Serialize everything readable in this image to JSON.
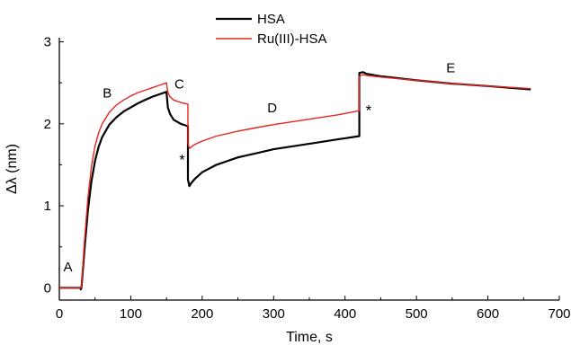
{
  "chart_data": {
    "type": "line",
    "title": "",
    "xlabel": "Time, s",
    "ylabel": "Δλ (nm)",
    "xlim": [
      0,
      700
    ],
    "ylim": [
      -0.15,
      3.05
    ],
    "x_ticks": [
      0,
      100,
      200,
      300,
      400,
      500,
      600,
      700
    ],
    "y_ticks": [
      0,
      1,
      2,
      3
    ],
    "grid": false,
    "legend_position": "top-center",
    "series": [
      {
        "name": "HSA",
        "color": "#000000",
        "points": [
          [
            0,
            0.0
          ],
          [
            30,
            0.0
          ],
          [
            30,
            -0.02
          ],
          [
            31,
            0.0
          ],
          [
            35,
            0.45
          ],
          [
            40,
            0.95
          ],
          [
            45,
            1.3
          ],
          [
            50,
            1.55
          ],
          [
            55,
            1.72
          ],
          [
            60,
            1.84
          ],
          [
            70,
            1.99
          ],
          [
            80,
            2.08
          ],
          [
            90,
            2.15
          ],
          [
            100,
            2.2
          ],
          [
            110,
            2.25
          ],
          [
            120,
            2.29
          ],
          [
            130,
            2.33
          ],
          [
            140,
            2.36
          ],
          [
            150,
            2.39
          ],
          [
            152,
            2.2
          ],
          [
            155,
            2.12
          ],
          [
            160,
            2.05
          ],
          [
            170,
            2.0
          ],
          [
            180,
            1.97
          ],
          [
            180,
            1.32
          ],
          [
            182,
            1.24
          ],
          [
            185,
            1.28
          ],
          [
            190,
            1.33
          ],
          [
            200,
            1.41
          ],
          [
            220,
            1.5
          ],
          [
            250,
            1.59
          ],
          [
            280,
            1.65
          ],
          [
            300,
            1.69
          ],
          [
            330,
            1.73
          ],
          [
            360,
            1.77
          ],
          [
            390,
            1.81
          ],
          [
            420,
            1.85
          ],
          [
            420,
            2.62
          ],
          [
            425,
            2.63
          ],
          [
            430,
            2.61
          ],
          [
            450,
            2.58
          ],
          [
            500,
            2.53
          ],
          [
            550,
            2.49
          ],
          [
            600,
            2.46
          ],
          [
            660,
            2.42
          ]
        ]
      },
      {
        "name": "Ru(III)-HSA",
        "color": "#e8251f",
        "points": [
          [
            0,
            0.0
          ],
          [
            30,
            0.0
          ],
          [
            31,
            0.0
          ],
          [
            35,
            0.55
          ],
          [
            40,
            1.1
          ],
          [
            45,
            1.48
          ],
          [
            50,
            1.73
          ],
          [
            55,
            1.89
          ],
          [
            60,
            2.0
          ],
          [
            70,
            2.14
          ],
          [
            80,
            2.23
          ],
          [
            90,
            2.29
          ],
          [
            100,
            2.34
          ],
          [
            110,
            2.38
          ],
          [
            120,
            2.41
          ],
          [
            130,
            2.44
          ],
          [
            140,
            2.47
          ],
          [
            150,
            2.5
          ],
          [
            152,
            2.38
          ],
          [
            155,
            2.33
          ],
          [
            160,
            2.29
          ],
          [
            170,
            2.26
          ],
          [
            180,
            2.24
          ],
          [
            180,
            1.76
          ],
          [
            182,
            1.7
          ],
          [
            185,
            1.72
          ],
          [
            190,
            1.75
          ],
          [
            200,
            1.79
          ],
          [
            220,
            1.85
          ],
          [
            250,
            1.91
          ],
          [
            280,
            1.96
          ],
          [
            300,
            1.99
          ],
          [
            330,
            2.03
          ],
          [
            360,
            2.07
          ],
          [
            390,
            2.11
          ],
          [
            420,
            2.16
          ],
          [
            420,
            2.58
          ],
          [
            425,
            2.6
          ],
          [
            430,
            2.59
          ],
          [
            450,
            2.57
          ],
          [
            500,
            2.53
          ],
          [
            550,
            2.49
          ],
          [
            600,
            2.46
          ],
          [
            660,
            2.43
          ]
        ]
      }
    ],
    "annotations": [
      {
        "text": "A",
        "x": 12,
        "y": 0.2
      },
      {
        "text": "B",
        "x": 67,
        "y": 2.32
      },
      {
        "text": "C",
        "x": 168,
        "y": 2.43
      },
      {
        "text": "*",
        "x": 172,
        "y": 1.5
      },
      {
        "text": "D",
        "x": 298,
        "y": 2.14
      },
      {
        "text": "*",
        "x": 433,
        "y": 2.1
      },
      {
        "text": "E",
        "x": 548,
        "y": 2.63
      }
    ]
  }
}
